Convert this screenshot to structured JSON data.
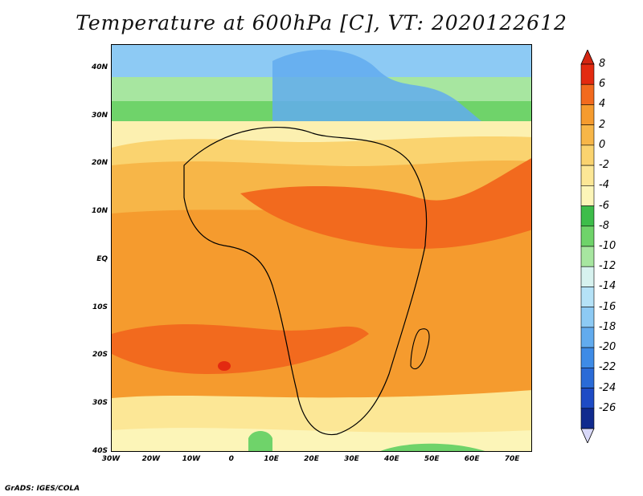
{
  "title": "Temperature at 600hPa [C], VT: 2020122612",
  "credit": "GrADS: IGES/COLA",
  "map": {
    "lat_labels": [
      "40N",
      "30N",
      "20N",
      "10N",
      "EQ",
      "10S",
      "20S",
      "30S",
      "40S"
    ],
    "lon_labels": [
      "30W",
      "20W",
      "10W",
      "0",
      "10E",
      "20E",
      "30E",
      "40E",
      "50E",
      "60E",
      "70E"
    ],
    "lat_range": [
      -40,
      45
    ],
    "lon_range": [
      -30,
      75
    ]
  },
  "colorbar": {
    "labels": [
      "8",
      "6",
      "4",
      "2",
      "0",
      "-2",
      "-4",
      "-6",
      "-8",
      "-10",
      "-12",
      "-14",
      "-16",
      "-18",
      "-20",
      "-22",
      "-24",
      "-26"
    ],
    "colors": [
      "#e32a10",
      "#f26a1e",
      "#f59b2e",
      "#f7b648",
      "#fad36f",
      "#fce796",
      "#fcf5b8",
      "#3dbd4a",
      "#6fd36a",
      "#a7e6a0",
      "#d7f2ef",
      "#b5e2f7",
      "#8dcaf4",
      "#62abee",
      "#3e8be6",
      "#2a6bd7",
      "#1e4bc5",
      "#102a8e"
    ],
    "min_arrow_color": "#d8d8f8",
    "max_arrow_color": "#d42612"
  }
}
